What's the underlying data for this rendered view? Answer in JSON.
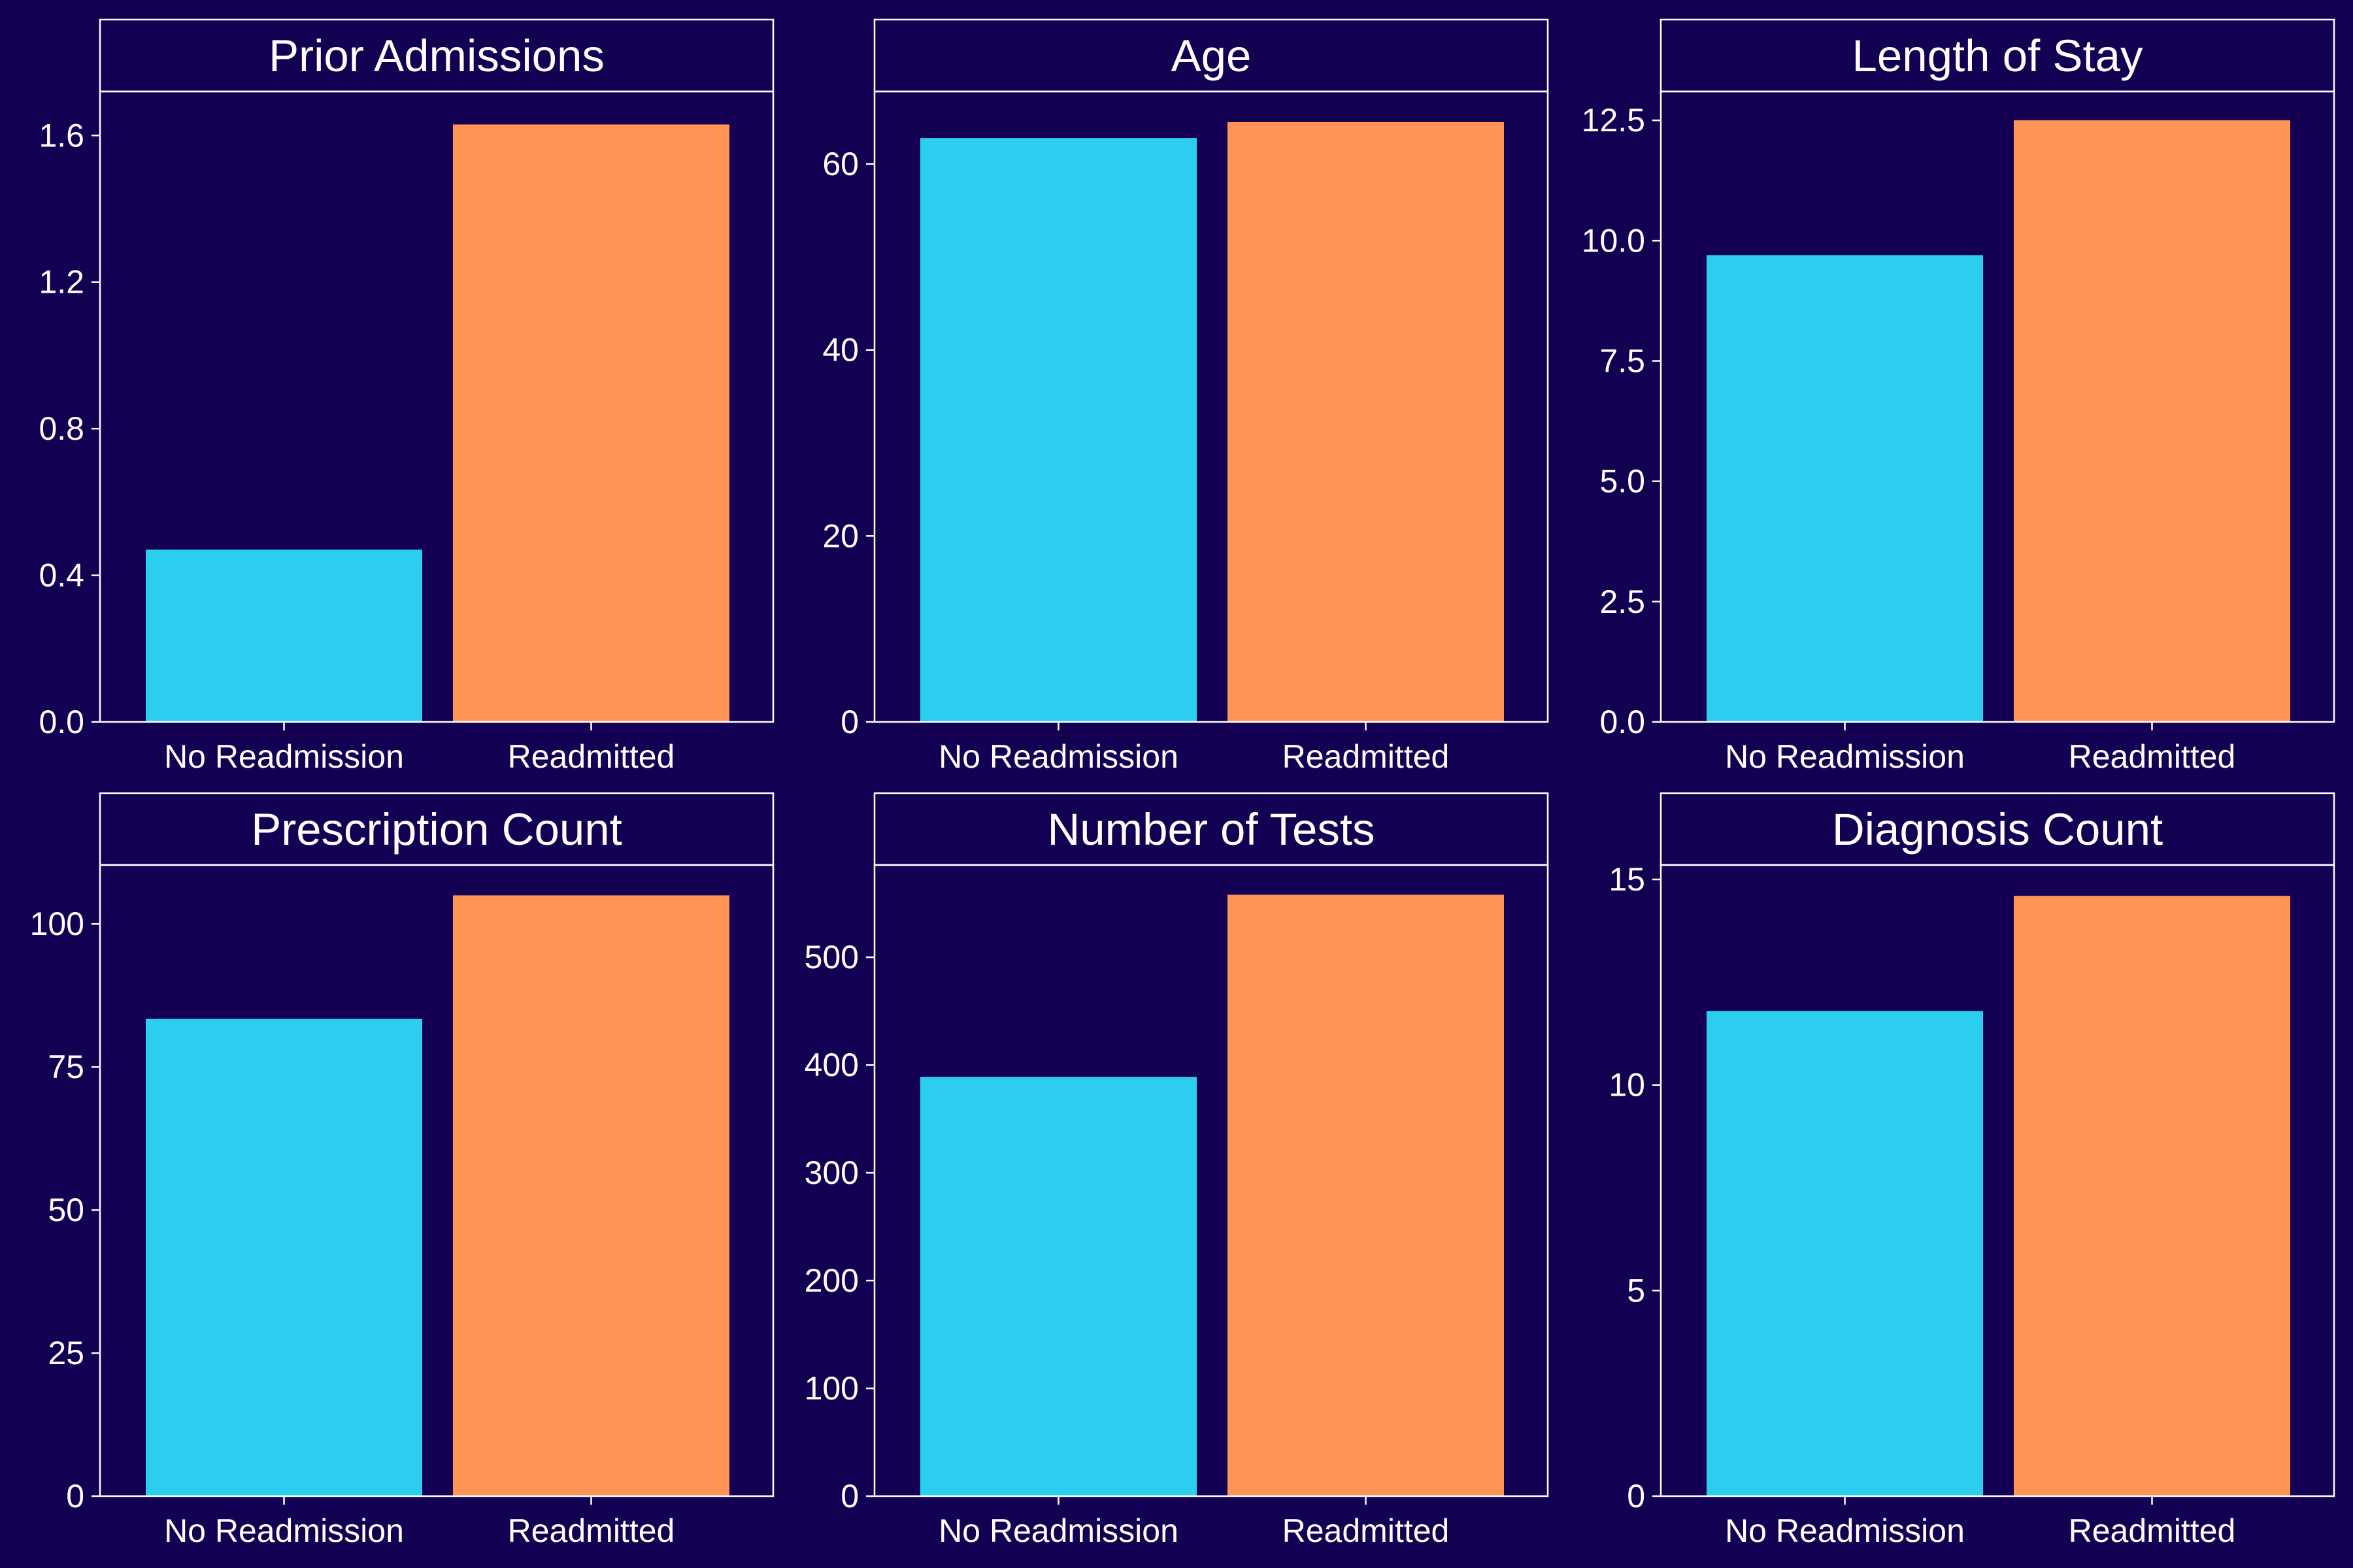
{
  "colors": {
    "background": "#140052",
    "frame": "#ffffff",
    "text": "#ffffff",
    "no_readmission": "#2ccef0",
    "readmitted": "#ff9457"
  },
  "chart_data": [
    {
      "type": "bar",
      "title": "Prior Admissions",
      "categories": [
        "No Readmission",
        "Readmitted"
      ],
      "values": [
        0.47,
        1.63
      ],
      "ylim": [
        0,
        1.72
      ],
      "yticks": [
        0.0,
        0.4,
        0.8,
        1.2,
        1.6
      ],
      "ytick_labels": [
        "0.0",
        "0.4",
        "0.8",
        "1.2",
        "1.6"
      ],
      "xlabel": "",
      "ylabel": "",
      "grid": false,
      "legend": "none"
    },
    {
      "type": "bar",
      "title": "Age",
      "categories": [
        "No Readmission",
        "Readmitted"
      ],
      "values": [
        62.8,
        64.5
      ],
      "ylim": [
        0,
        67.8
      ],
      "yticks": [
        0,
        20,
        40,
        60
      ],
      "ytick_labels": [
        "0",
        "20",
        "40",
        "60"
      ],
      "xlabel": "",
      "ylabel": "",
      "grid": false,
      "legend": "none"
    },
    {
      "type": "bar",
      "title": "Length of Stay",
      "categories": [
        "No Readmission",
        "Readmitted"
      ],
      "values": [
        9.7,
        12.5
      ],
      "ylim": [
        0,
        13.1
      ],
      "yticks": [
        0.0,
        2.5,
        5.0,
        7.5,
        10.0,
        12.5
      ],
      "ytick_labels": [
        "0.0",
        "2.5",
        "5.0",
        "7.5",
        "10.0",
        "12.5"
      ],
      "xlabel": "",
      "ylabel": "",
      "grid": false,
      "legend": "none"
    },
    {
      "type": "bar",
      "title": "Prescription Count",
      "categories": [
        "No Readmission",
        "Readmitted"
      ],
      "values": [
        83.4,
        105.0
      ],
      "ylim": [
        0,
        110.3
      ],
      "yticks": [
        0,
        25,
        50,
        75,
        100
      ],
      "ytick_labels": [
        "0",
        "25",
        "50",
        "75",
        "100"
      ],
      "xlabel": "",
      "ylabel": "",
      "grid": false,
      "legend": "none"
    },
    {
      "type": "bar",
      "title": "Number of Tests",
      "categories": [
        "No Readmission",
        "Readmitted"
      ],
      "values": [
        389,
        558
      ],
      "ylim": [
        0,
        585.6
      ],
      "yticks": [
        0,
        100,
        200,
        300,
        400,
        500
      ],
      "ytick_labels": [
        "0",
        "100",
        "200",
        "300",
        "400",
        "500"
      ],
      "xlabel": "",
      "ylabel": "",
      "grid": false,
      "legend": "none"
    },
    {
      "type": "bar",
      "title": "Diagnosis Count",
      "categories": [
        "No Readmission",
        "Readmitted"
      ],
      "values": [
        11.8,
        14.6
      ],
      "ylim": [
        0,
        15.35
      ],
      "yticks": [
        0,
        5,
        10,
        15
      ],
      "ytick_labels": [
        "0",
        "5",
        "10",
        "15"
      ],
      "xlabel": "",
      "ylabel": "",
      "grid": false,
      "legend": "none"
    }
  ]
}
